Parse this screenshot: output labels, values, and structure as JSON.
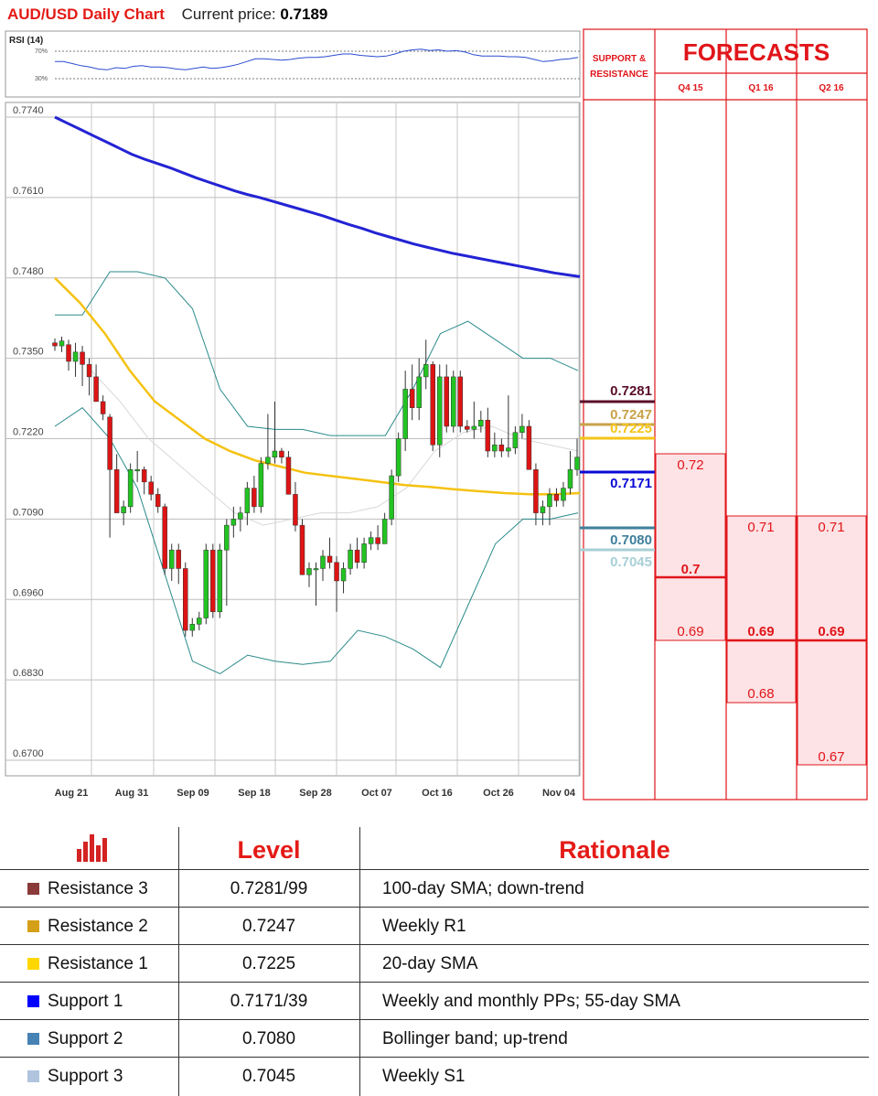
{
  "header": {
    "title": "AUD/USD Daily Chart",
    "price_label": "Current price:",
    "price_value": "0.7189"
  },
  "rsi": {
    "label": "RSI (14)",
    "levels": [
      "70%",
      "30%"
    ],
    "values": [
      55,
      55,
      52,
      49,
      47,
      44,
      43,
      46,
      45,
      48,
      49,
      47,
      47,
      46,
      44,
      43,
      45,
      47,
      45,
      46,
      48,
      51,
      55,
      59,
      59,
      58,
      57,
      58,
      60,
      61,
      61,
      62,
      64,
      66,
      66,
      64,
      63,
      62,
      63,
      66,
      70,
      72,
      73,
      71,
      72,
      70,
      71,
      69,
      65,
      63,
      63,
      63,
      62,
      62,
      61,
      58,
      55,
      56,
      58,
      59,
      61
    ]
  },
  "forecast_panel": {
    "sr_title": "SUPPORT & RESISTANCE",
    "title": "FORECASTS",
    "columns": [
      "Q4 15",
      "Q1 16",
      "Q2 16"
    ],
    "q4": {
      "high": "0.72",
      "mid": "0.7",
      "low": "0.69"
    },
    "q1": {
      "high": "0.71",
      "mid": "0.69",
      "low": "0.68"
    },
    "q2": {
      "high": "0.71",
      "mid": "0.69",
      "low": "0.67"
    },
    "sr_levels": [
      {
        "value": "0.7281",
        "price": 0.7281,
        "color": "#5a0e2a"
      },
      {
        "value": "0.7247",
        "price": 0.7247,
        "color": "#c9a24a"
      },
      {
        "value": "0.7225",
        "price": 0.7225,
        "color": "#f5c518"
      },
      {
        "value": "0.7171",
        "price": 0.7171,
        "color": "#0a0ad6"
      },
      {
        "value": "0.7080",
        "price": 0.708,
        "color": "#3f7f9b"
      },
      {
        "value": "0.7045",
        "price": 0.7045,
        "color": "#a8cfd6"
      }
    ]
  },
  "chart_data": {
    "type": "candlestick",
    "title": "AUD/USD Daily Chart",
    "y_ticks": [
      "0.7740",
      "0.7610",
      "0.7480",
      "0.7350",
      "0.7220",
      "0.7090",
      "0.6960",
      "0.6830",
      "0.6700"
    ],
    "ylim": [
      0.67,
      0.774
    ],
    "x_labels": [
      "Aug 21",
      "Aug 31",
      "Sep 09",
      "Sep 18",
      "Sep 28",
      "Oct 07",
      "Oct 16",
      "Oct 26",
      "Nov 04"
    ],
    "candles": [
      [
        0.7375,
        0.7382,
        0.7362,
        0.737
      ],
      [
        0.737,
        0.7385,
        0.736,
        0.7378
      ],
      [
        0.7372,
        0.738,
        0.733,
        0.7345
      ],
      [
        0.7345,
        0.7375,
        0.732,
        0.736
      ],
      [
        0.736,
        0.737,
        0.7305,
        0.734
      ],
      [
        0.734,
        0.735,
        0.729,
        0.732
      ],
      [
        0.732,
        0.734,
        0.728,
        0.728
      ],
      [
        0.728,
        0.729,
        0.725,
        0.726
      ],
      [
        0.7255,
        0.726,
        0.706,
        0.717
      ],
      [
        0.717,
        0.7195,
        0.71,
        0.71
      ],
      [
        0.71,
        0.712,
        0.708,
        0.711
      ],
      [
        0.711,
        0.718,
        0.71,
        0.717
      ],
      [
        0.717,
        0.72,
        0.715,
        0.717
      ],
      [
        0.717,
        0.7175,
        0.713,
        0.715
      ],
      [
        0.715,
        0.716,
        0.712,
        0.713
      ],
      [
        0.713,
        0.714,
        0.71,
        0.711
      ],
      [
        0.711,
        0.7115,
        0.7,
        0.701
      ],
      [
        0.701,
        0.705,
        0.699,
        0.704
      ],
      [
        0.704,
        0.705,
        0.6985,
        0.701
      ],
      [
        0.701,
        0.702,
        0.69,
        0.691
      ],
      [
        0.691,
        0.693,
        0.69,
        0.692
      ],
      [
        0.692,
        0.694,
        0.691,
        0.693
      ],
      [
        0.693,
        0.705,
        0.692,
        0.704
      ],
      [
        0.704,
        0.705,
        0.693,
        0.694
      ],
      [
        0.694,
        0.705,
        0.693,
        0.704
      ],
      [
        0.704,
        0.709,
        0.695,
        0.708
      ],
      [
        0.708,
        0.711,
        0.706,
        0.709
      ],
      [
        0.709,
        0.711,
        0.707,
        0.71
      ],
      [
        0.71,
        0.715,
        0.708,
        0.714
      ],
      [
        0.714,
        0.716,
        0.71,
        0.711
      ],
      [
        0.711,
        0.719,
        0.71,
        0.718
      ],
      [
        0.718,
        0.726,
        0.717,
        0.719
      ],
      [
        0.719,
        0.728,
        0.718,
        0.72
      ],
      [
        0.72,
        0.7205,
        0.718,
        0.719
      ],
      [
        0.719,
        0.72,
        0.713,
        0.713
      ],
      [
        0.713,
        0.715,
        0.707,
        0.708
      ],
      [
        0.708,
        0.709,
        0.7,
        0.7
      ],
      [
        0.7,
        0.702,
        0.698,
        0.701
      ],
      [
        0.701,
        0.702,
        0.695,
        0.701
      ],
      [
        0.701,
        0.704,
        0.699,
        0.703
      ],
      [
        0.703,
        0.706,
        0.701,
        0.702
      ],
      [
        0.702,
        0.703,
        0.694,
        0.699
      ],
      [
        0.699,
        0.702,
        0.697,
        0.701
      ],
      [
        0.701,
        0.705,
        0.7,
        0.704
      ],
      [
        0.704,
        0.706,
        0.701,
        0.702
      ],
      [
        0.702,
        0.706,
        0.701,
        0.705
      ],
      [
        0.705,
        0.707,
        0.704,
        0.706
      ],
      [
        0.706,
        0.708,
        0.704,
        0.705
      ],
      [
        0.705,
        0.71,
        0.705,
        0.709
      ],
      [
        0.709,
        0.717,
        0.708,
        0.716
      ],
      [
        0.716,
        0.723,
        0.715,
        0.722
      ],
      [
        0.722,
        0.733,
        0.72,
        0.73
      ],
      [
        0.73,
        0.734,
        0.725,
        0.727
      ],
      [
        0.727,
        0.735,
        0.725,
        0.732
      ],
      [
        0.732,
        0.738,
        0.73,
        0.734
      ],
      [
        0.734,
        0.7345,
        0.72,
        0.721
      ],
      [
        0.721,
        0.734,
        0.719,
        0.732
      ],
      [
        0.732,
        0.734,
        0.723,
        0.724
      ],
      [
        0.724,
        0.733,
        0.723,
        0.732
      ],
      [
        0.732,
        0.733,
        0.723,
        0.724
      ],
      [
        0.724,
        0.725,
        0.723,
        0.7235
      ],
      [
        0.7235,
        0.728,
        0.722,
        0.724
      ],
      [
        0.724,
        0.7265,
        0.723,
        0.725
      ],
      [
        0.725,
        0.727,
        0.719,
        0.72
      ],
      [
        0.72,
        0.723,
        0.719,
        0.721
      ],
      [
        0.721,
        0.722,
        0.719,
        0.72
      ],
      [
        0.72,
        0.729,
        0.719,
        0.7205
      ],
      [
        0.7205,
        0.724,
        0.7195,
        0.723
      ],
      [
        0.723,
        0.726,
        0.722,
        0.724
      ],
      [
        0.724,
        0.725,
        0.717,
        0.717
      ],
      [
        0.717,
        0.718,
        0.708,
        0.71
      ],
      [
        0.71,
        0.712,
        0.708,
        0.711
      ],
      [
        0.711,
        0.714,
        0.708,
        0.713
      ],
      [
        0.713,
        0.714,
        0.711,
        0.712
      ],
      [
        0.712,
        0.715,
        0.711,
        0.714
      ],
      [
        0.714,
        0.72,
        0.713,
        0.717
      ],
      [
        0.717,
        0.722,
        0.716,
        0.719
      ]
    ],
    "sma100": [
      0.774,
      0.773,
      0.772,
      0.771,
      0.77,
      0.769,
      0.768,
      0.7672,
      0.7665,
      0.7658,
      0.765,
      0.7642,
      0.7635,
      0.7628,
      0.7621,
      0.7615,
      0.761,
      0.7604,
      0.7598,
      0.7592,
      0.7586,
      0.758,
      0.7573,
      0.7566,
      0.756,
      0.7553,
      0.7547,
      0.7541,
      0.7535,
      0.753,
      0.7525,
      0.752,
      0.7516,
      0.7512,
      0.7508,
      0.7504,
      0.75,
      0.7496,
      0.7492,
      0.7488,
      0.7485,
      0.7482
    ],
    "sma55": [
      0.748,
      0.744,
      0.739,
      0.733,
      0.728,
      0.725,
      0.722,
      0.72,
      0.7185,
      0.7175,
      0.7165,
      0.716,
      0.7155,
      0.715,
      0.7145,
      0.7142,
      0.7138,
      0.7135,
      0.7132,
      0.713,
      0.713,
      0.7132
    ],
    "bb_upper": [
      0.742,
      0.742,
      0.749,
      0.749,
      0.748,
      0.743,
      0.73,
      0.724,
      0.7235,
      0.7235,
      0.7225,
      0.7225,
      0.7225,
      0.73,
      0.739,
      0.741,
      0.738,
      0.735,
      0.735,
      0.733
    ],
    "bb_lower": [
      0.724,
      0.727,
      0.722,
      0.714,
      0.7,
      0.686,
      0.684,
      0.687,
      0.686,
      0.6855,
      0.686,
      0.691,
      0.69,
      0.688,
      0.685,
      0.695,
      0.705,
      0.709,
      0.709,
      0.71
    ],
    "sma20": [
      0.733,
      0.728,
      0.722,
      0.718,
      0.714,
      0.71,
      0.708,
      0.709,
      0.71,
      0.71,
      0.711,
      0.714,
      0.72,
      0.723,
      0.724,
      0.722,
      0.721,
      0.72
    ]
  },
  "table": {
    "headers": [
      "Level",
      "Rationale"
    ],
    "rows": [
      {
        "name": "Resistance 3",
        "level": "0.7281/99",
        "rationale": "100-day SMA; down-trend",
        "color": "#8b3a3a"
      },
      {
        "name": "Resistance 2",
        "level": "0.7247",
        "rationale": "Weekly R1",
        "color": "#d4a017"
      },
      {
        "name": "Resistance 1",
        "level": "0.7225",
        "rationale": "20-day SMA",
        "color": "#ffd700"
      },
      {
        "name": "Support 1",
        "level": "0.7171/39",
        "rationale": "Weekly and monthly PPs; 55-day SMA",
        "color": "#0000ff"
      },
      {
        "name": "Support 2",
        "level": "0.7080",
        "rationale": "Bollinger band; up-trend",
        "color": "#4682b4"
      },
      {
        "name": "Support 3",
        "level": "0.7045",
        "rationale": "Weekly S1",
        "color": "#b0c4de"
      }
    ]
  }
}
